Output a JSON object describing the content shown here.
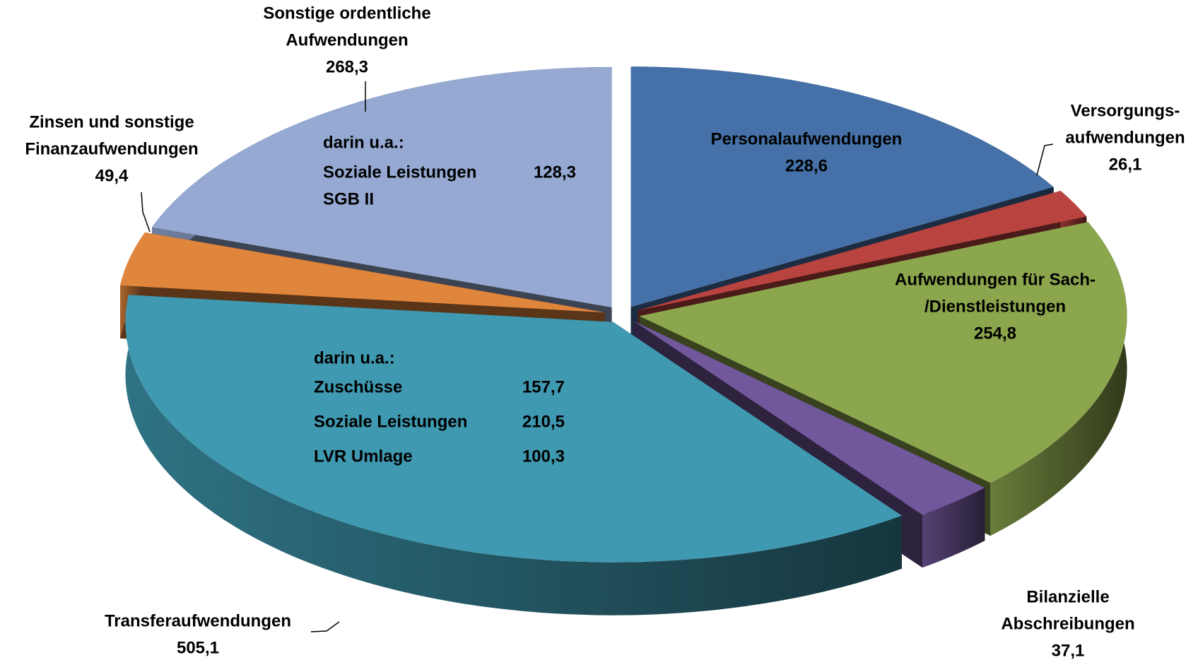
{
  "chart_data": {
    "type": "pie",
    "categories": [
      [
        "Personalaufwendungen"
      ],
      [
        "Versorgungs-",
        "aufwendungen"
      ],
      [
        "Aufwendungen für Sach-",
        "/Dienstleistungen"
      ],
      [
        "Bilanzielle",
        "Abschreibungen"
      ],
      [
        "Transferaufwendungen"
      ],
      [
        "Zinsen und sonstige",
        "Finanzaufwendungen"
      ],
      [
        "Sonstige ordentliche",
        "Aufwendungen"
      ]
    ],
    "values": [
      228.6,
      26.1,
      254.8,
      37.1,
      505.1,
      49.4,
      268.3
    ],
    "value_labels": [
      "228,6",
      "26,1",
      "254,8",
      "37,1",
      "505,1",
      "49,4",
      "268,3"
    ],
    "colors": [
      "#4571a8",
      "#b8433f",
      "#8ba64d",
      "#71589c",
      "#3f99b0",
      "#e0853c",
      "#95a9d2"
    ],
    "annotations": [
      {
        "lines": [
          {
            "text": "darin u.a.:"
          },
          {
            "text": "Soziale Leistungen",
            "value": 128.3,
            "value_label": "128,3"
          },
          {
            "text": "SGB II"
          }
        ]
      },
      {
        "lines": [
          {
            "text": "darin u.a.:"
          },
          {
            "text": "Zuschüsse",
            "value": 157.7,
            "value_label": "157,7"
          },
          {
            "text": "Soziale Leistungen",
            "value": 210.5,
            "value_label": "210,5"
          },
          {
            "text": "LVR Umlage",
            "value": 100.3,
            "value_label": "100,3"
          }
        ]
      }
    ]
  }
}
